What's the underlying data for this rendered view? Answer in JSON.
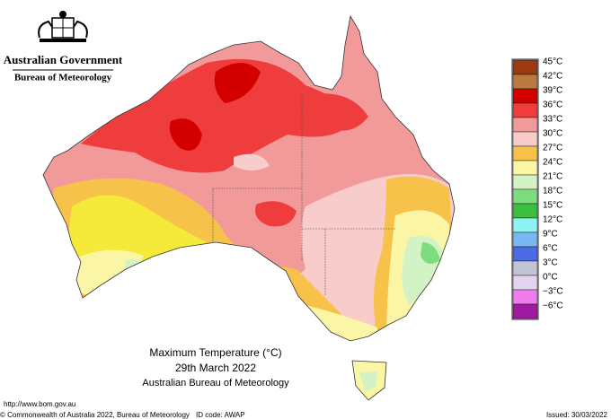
{
  "header": {
    "government": "Australian Government",
    "agency": "Bureau of Meteorology"
  },
  "legend": [
    {
      "label": "45°C",
      "color": "#9c3a12"
    },
    {
      "label": "42°C",
      "color": "#b97a40"
    },
    {
      "label": "39°C",
      "color": "#d40000"
    },
    {
      "label": "36°C",
      "color": "#ef3c3c"
    },
    {
      "label": "33°C",
      "color": "#f29a9a"
    },
    {
      "label": "30°C",
      "color": "#f9cccc"
    },
    {
      "label": "27°C",
      "color": "#f6c24a"
    },
    {
      "label": "24°C",
      "color": "#fbf6a6"
    },
    {
      "label": "21°C",
      "color": "#d4f3c4"
    },
    {
      "label": "18°C",
      "color": "#7ddc7d"
    },
    {
      "label": "15°C",
      "color": "#3cbf3c"
    },
    {
      "label": "12°C",
      "color": "#8ef3f3"
    },
    {
      "label": "9°C",
      "color": "#7bb7f3"
    },
    {
      "label": "6°C",
      "color": "#4a6ae6"
    },
    {
      "label": "3°C",
      "color": "#c3c3d6"
    },
    {
      "label": "0°C",
      "color": "#e3d3ef"
    },
    {
      "label": "−3°C",
      "color": "#f07cf0"
    },
    {
      "label": "−6°C",
      "color": "#a01aa0"
    }
  ],
  "caption": {
    "title": "Maximum Temperature (°C)",
    "date": "29th March 2022",
    "source": "Australian Bureau of Meteorology"
  },
  "footer": {
    "url": "http://www.bom.gov.au",
    "copyright": "© Commonwealth of Australia 2022, Bureau of Meteorology",
    "id_code": "ID code: AWAP",
    "issued": "Issued: 30/03/2022"
  }
}
